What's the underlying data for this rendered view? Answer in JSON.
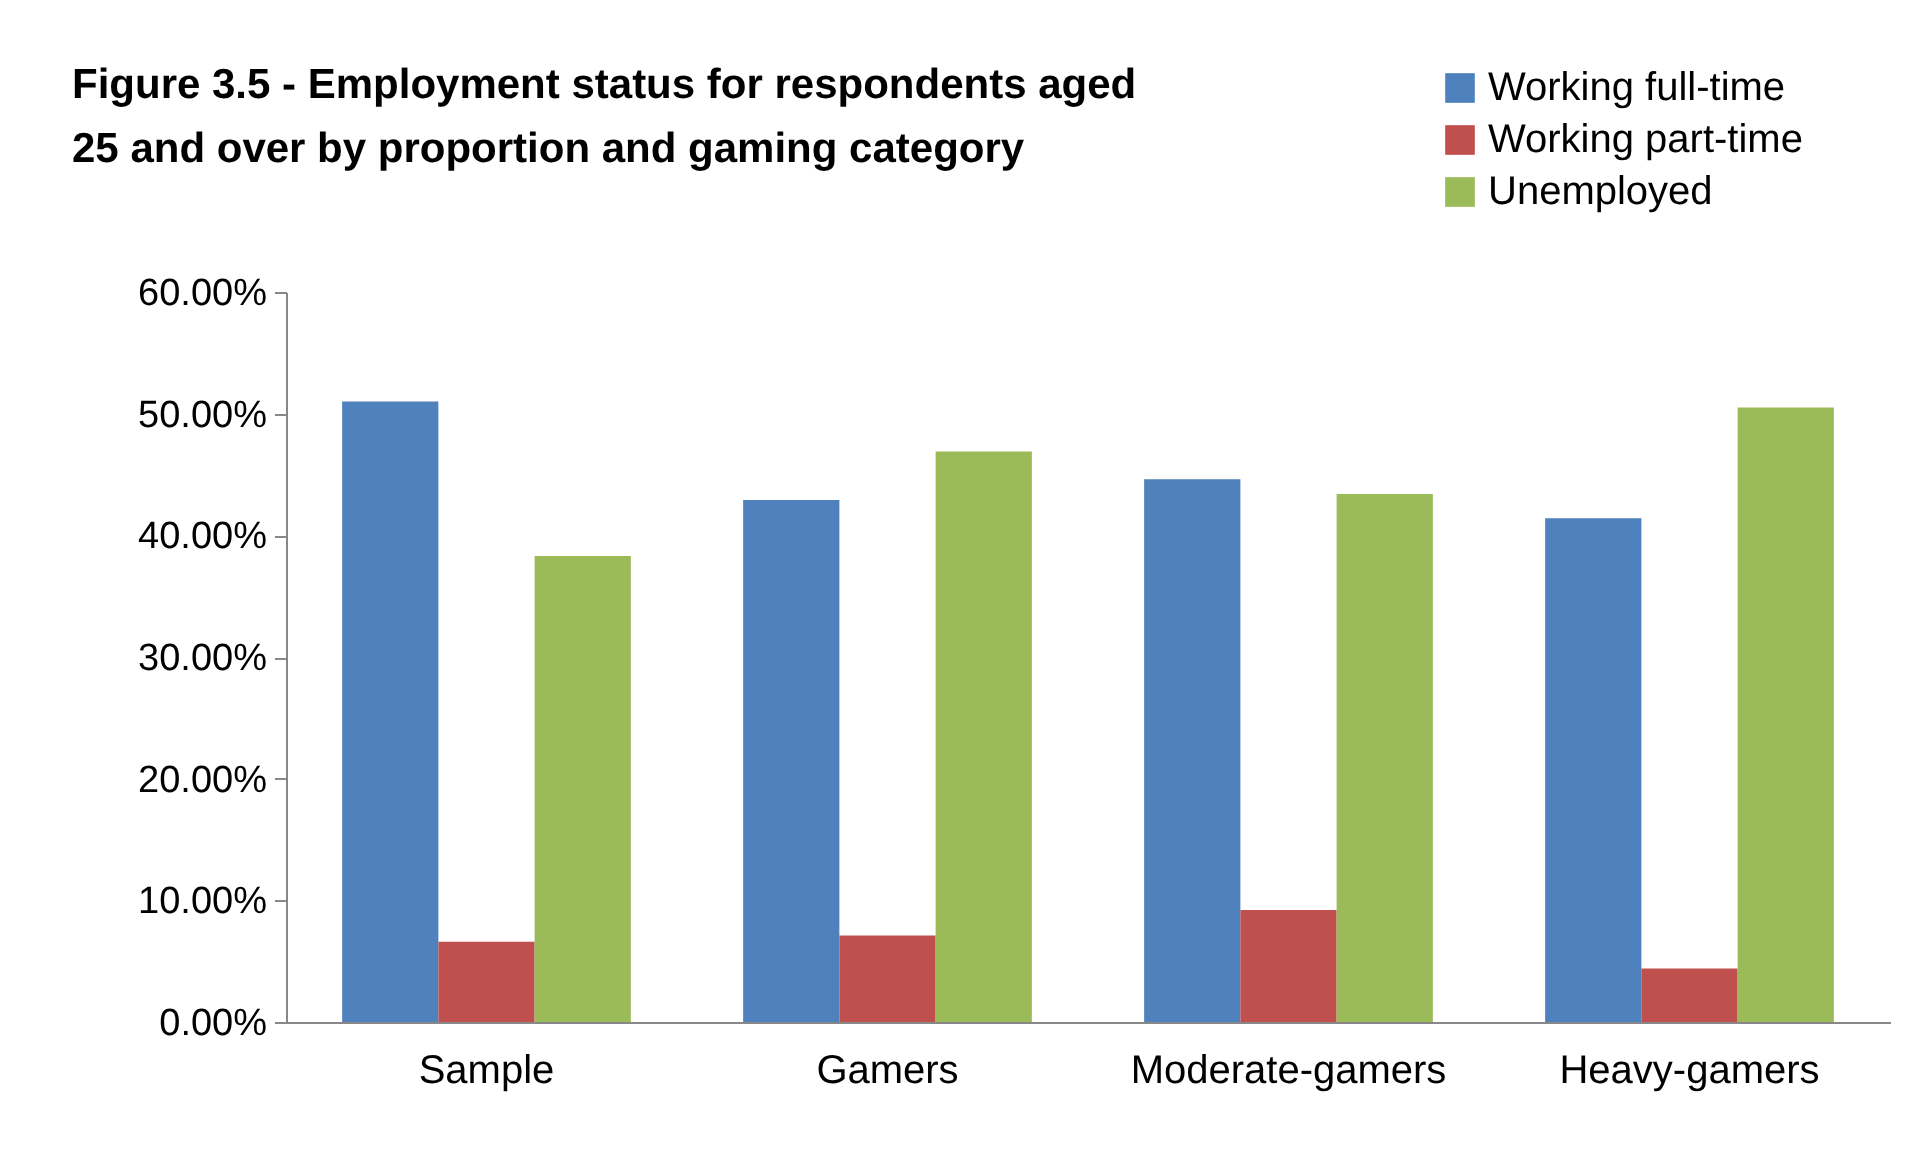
{
  "chart_data": {
    "type": "bar",
    "title": "Figure 3.5 - Employment status for respondents aged 25 and over by proportion and gaming category",
    "categories": [
      "Sample",
      "Gamers",
      "Moderate-gamers",
      "Heavy-gamers"
    ],
    "series": [
      {
        "name": "Working full-time",
        "color": "#4f81bd",
        "values": [
          51.0,
          42.9,
          44.6,
          41.4
        ]
      },
      {
        "name": "Working part-time",
        "color": "#c0504d",
        "values": [
          6.6,
          7.1,
          9.2,
          4.4
        ]
      },
      {
        "name": "Unemployed",
        "color": "#9bbb59",
        "values": [
          38.3,
          46.9,
          43.4,
          50.5
        ]
      }
    ],
    "ylim": [
      0,
      60
    ],
    "yticks": [
      {
        "value": 0,
        "label": "0.00%"
      },
      {
        "value": 10,
        "label": "10.00%"
      },
      {
        "value": 20,
        "label": "20.00%"
      },
      {
        "value": 30,
        "label": "30.00%"
      },
      {
        "value": 40,
        "label": "40.00%"
      },
      {
        "value": 50,
        "label": "50.00%"
      },
      {
        "value": 60,
        "label": "60.00%"
      }
    ],
    "grid": false,
    "legend": "top right"
  }
}
